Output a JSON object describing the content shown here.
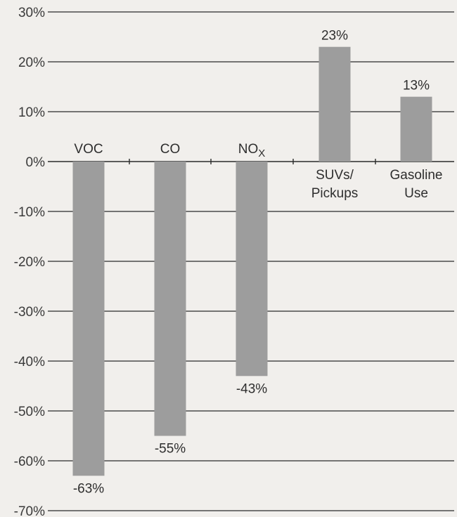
{
  "chart_data": {
    "type": "bar",
    "categories": [
      "VOC",
      "CO",
      "NOX",
      "SUVs/ Pickups",
      "Gasoline Use"
    ],
    "category_labels": [
      {
        "lines": [
          "VOC"
        ],
        "subscript": ""
      },
      {
        "lines": [
          "CO"
        ],
        "subscript": ""
      },
      {
        "lines": [
          "NO"
        ],
        "subscript": "X"
      },
      {
        "lines": [
          "SUVs/",
          "Pickups"
        ],
        "subscript": ""
      },
      {
        "lines": [
          "Gasoline",
          "Use"
        ],
        "subscript": ""
      }
    ],
    "values": [
      -63,
      -55,
      -43,
      23,
      13
    ],
    "value_labels": [
      "-63%",
      "-55%",
      "-43%",
      "23%",
      "13%"
    ],
    "ylim": [
      -70,
      30
    ],
    "yticks": [
      30,
      20,
      10,
      0,
      -10,
      -20,
      -30,
      -40,
      -50,
      -60,
      -70
    ],
    "ytick_labels": [
      "30%",
      "20%",
      "10%",
      "0%",
      "-10%",
      "-20%",
      "-30%",
      "-40%",
      "-50%",
      "-60%",
      "-70%"
    ],
    "grid": true,
    "bar_color": "#9d9d9d",
    "background_color": "#f1efec"
  }
}
